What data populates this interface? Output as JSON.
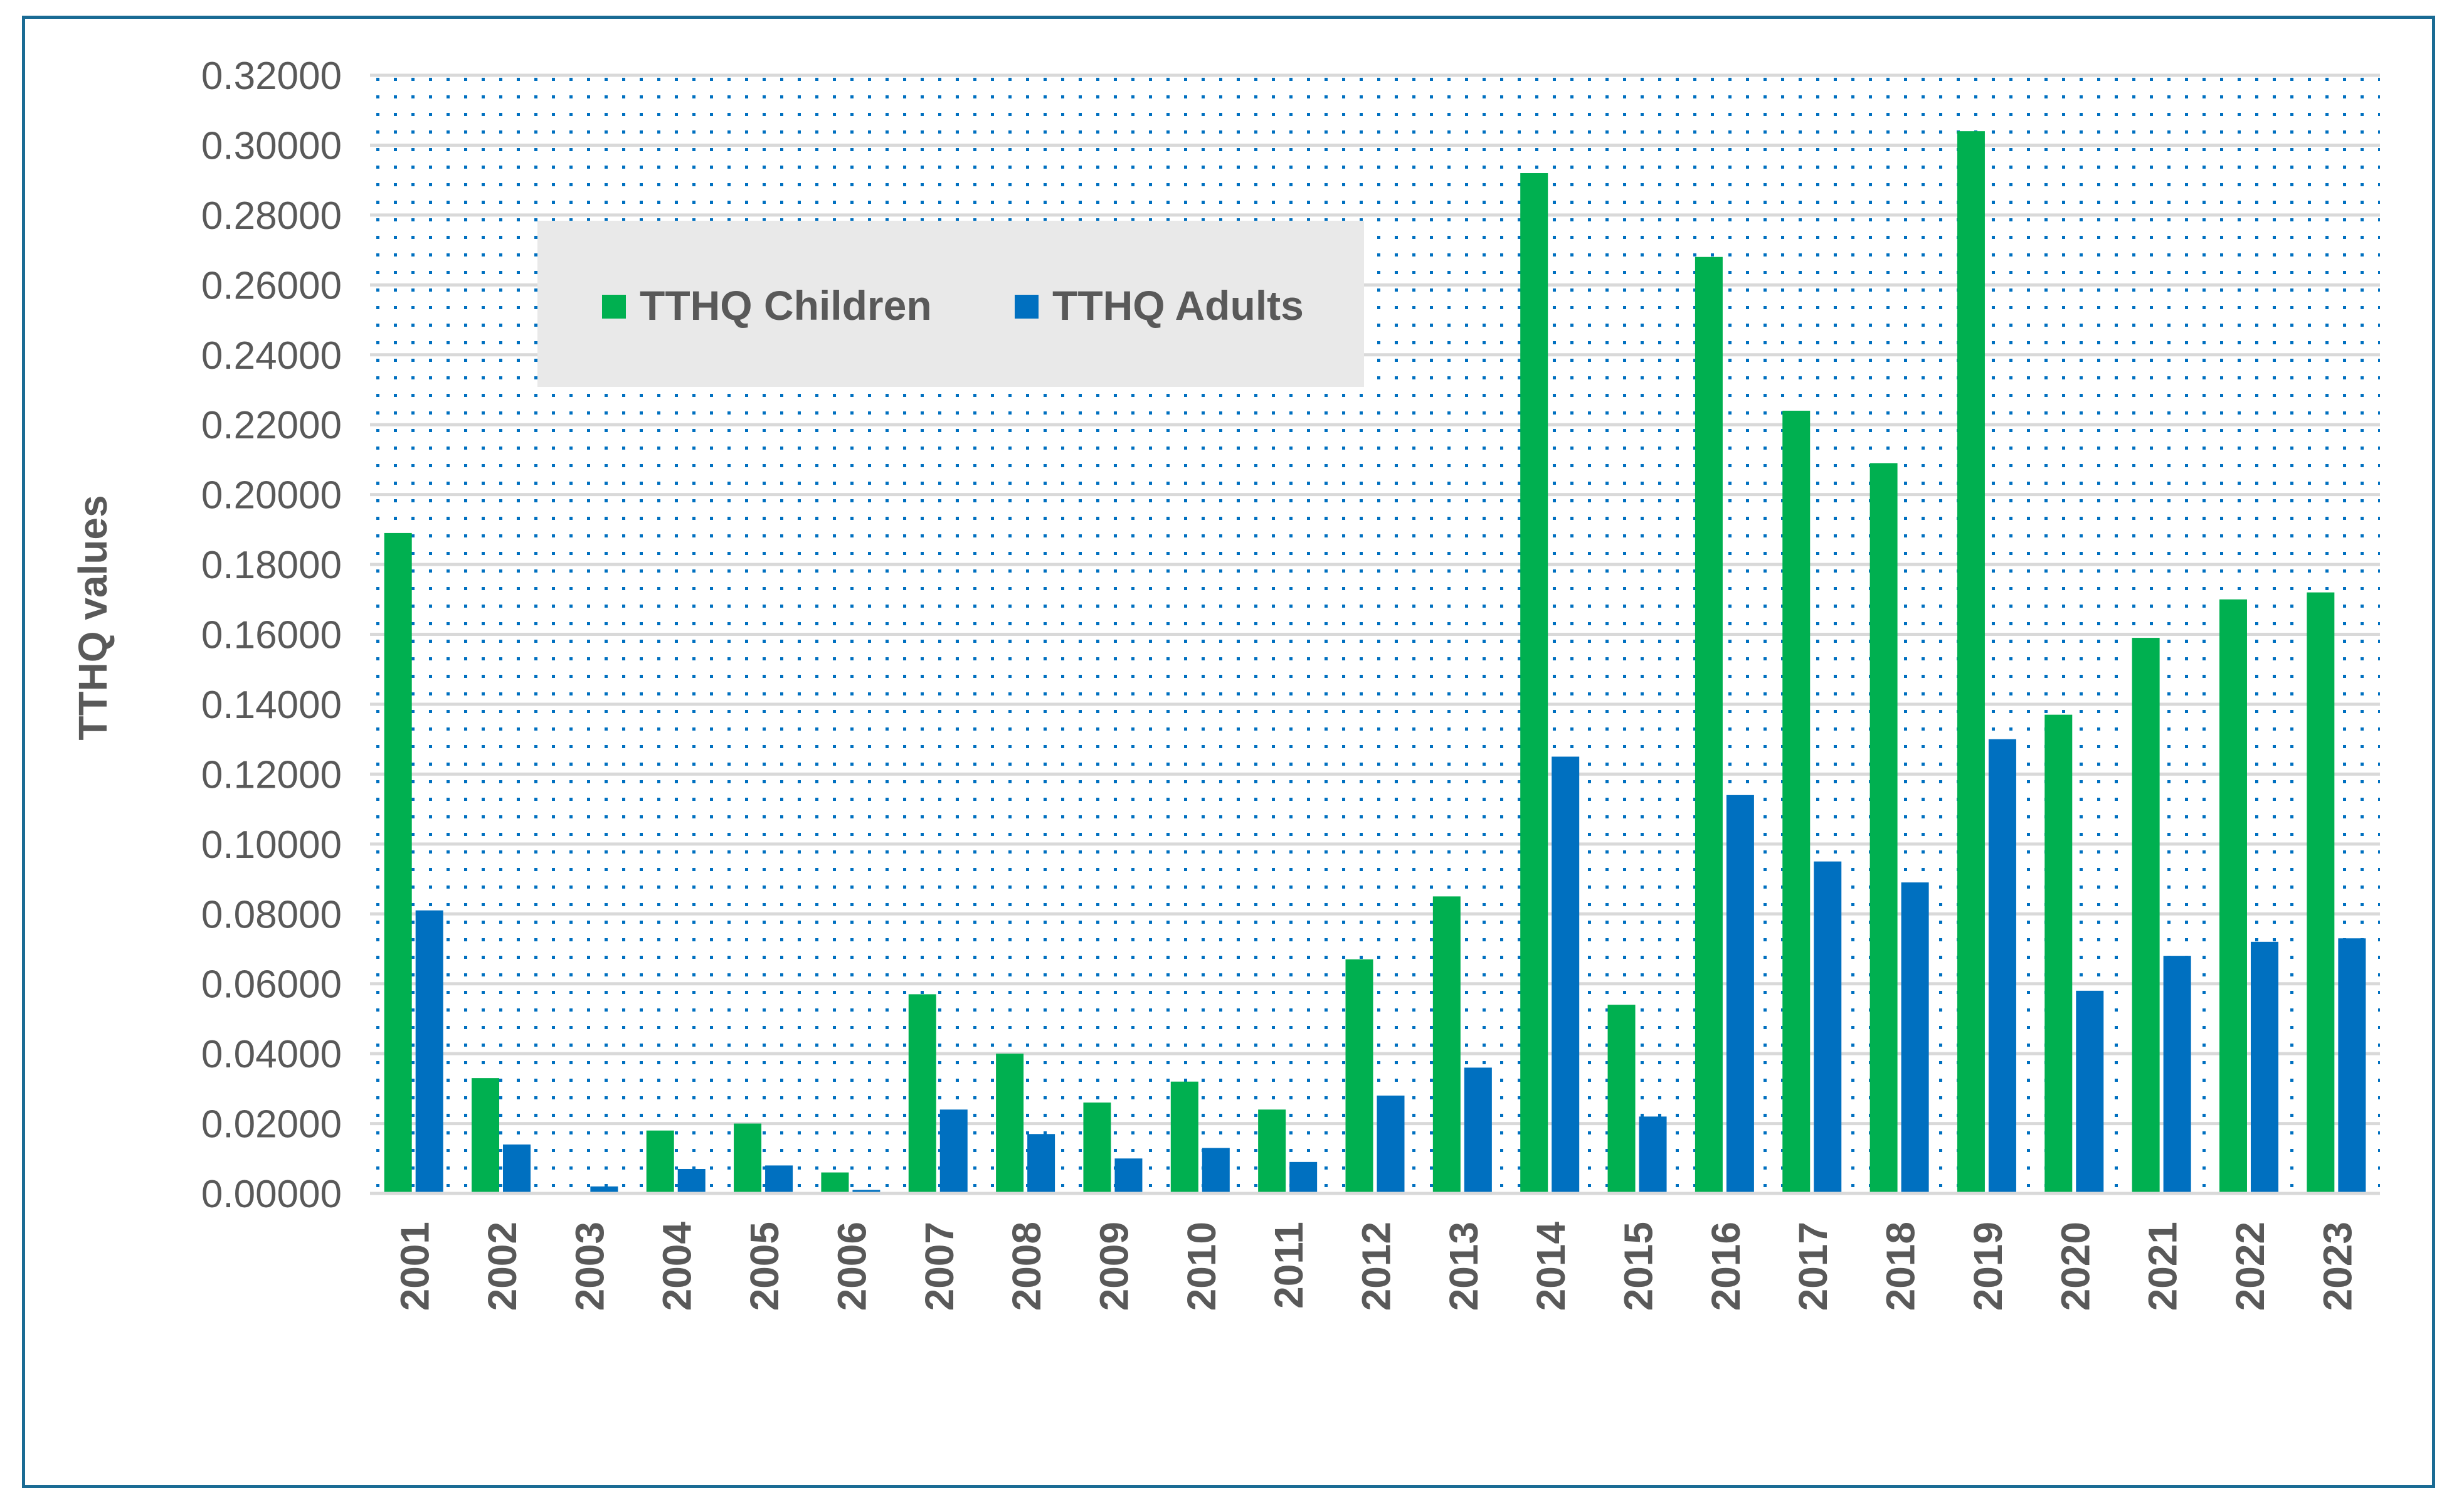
{
  "colors": {
    "children": "#00b050",
    "adults": "#0070c0",
    "frame": "#1a6b94",
    "dots": "#0070c0",
    "legend_bg": "#e9e9e9",
    "text": "#595959",
    "grid": "#d9d9d9"
  },
  "chart_data": {
    "type": "bar",
    "title": "",
    "xlabel": "",
    "ylabel": "TTHQ values",
    "ylim": [
      0,
      0.32
    ],
    "yticks": [
      "0.00000",
      "0.02000",
      "0.04000",
      "0.06000",
      "0.08000",
      "0.10000",
      "0.12000",
      "0.14000",
      "0.16000",
      "0.18000",
      "0.20000",
      "0.22000",
      "0.24000",
      "0.26000",
      "0.28000",
      "0.30000",
      "0.32000"
    ],
    "grid": true,
    "legend": "top-left",
    "categories": [
      "2001",
      "2002",
      "2003",
      "2004",
      "2005",
      "2006",
      "2007",
      "2008",
      "2009",
      "2010",
      "2011",
      "2012",
      "2013",
      "2014",
      "2015",
      "2016",
      "2017",
      "2018",
      "2019",
      "2020",
      "2021",
      "2022",
      "2023"
    ],
    "series": [
      {
        "name": "TTHQ Children",
        "values": [
          0.189,
          0.033,
          0.0,
          0.018,
          0.02,
          0.006,
          0.057,
          0.04,
          0.026,
          0.032,
          0.024,
          0.067,
          0.085,
          0.292,
          0.054,
          0.268,
          0.224,
          0.209,
          0.304,
          0.137,
          0.159,
          0.17,
          0.172
        ]
      },
      {
        "name": "TTHQ Adults",
        "values": [
          0.081,
          0.014,
          0.002,
          0.007,
          0.008,
          0.001,
          0.024,
          0.017,
          0.01,
          0.013,
          0.009,
          0.028,
          0.036,
          0.125,
          0.022,
          0.114,
          0.095,
          0.089,
          0.13,
          0.058,
          0.068,
          0.072,
          0.073
        ]
      }
    ]
  }
}
